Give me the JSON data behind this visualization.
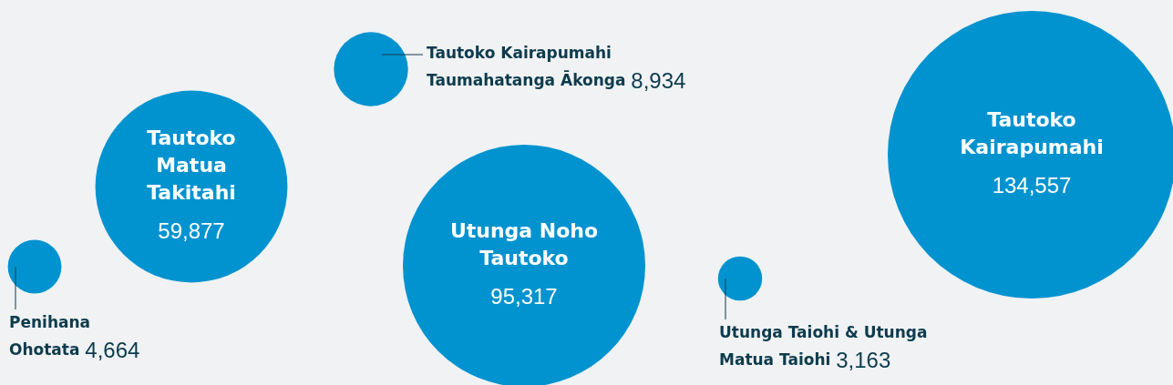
{
  "chart_data": {
    "type": "other",
    "categories": [
      "Penihana Ohotata",
      "Tautoko Matua Takitahi",
      "Tautoko Kairapumahi Taumahatanga Ākonga",
      "Utunga Noho Tautoko",
      "Utunga Taiohi & Utunga Matua Taiohi",
      "Tautoko Kairapumahi"
    ],
    "values": [
      4664,
      59877,
      8934,
      95317,
      3163,
      134557
    ],
    "value_labels": [
      "4,664",
      "59,877",
      "8,934",
      "95,317",
      "3,163",
      "134,557"
    ],
    "color": "#0093d0"
  }
}
